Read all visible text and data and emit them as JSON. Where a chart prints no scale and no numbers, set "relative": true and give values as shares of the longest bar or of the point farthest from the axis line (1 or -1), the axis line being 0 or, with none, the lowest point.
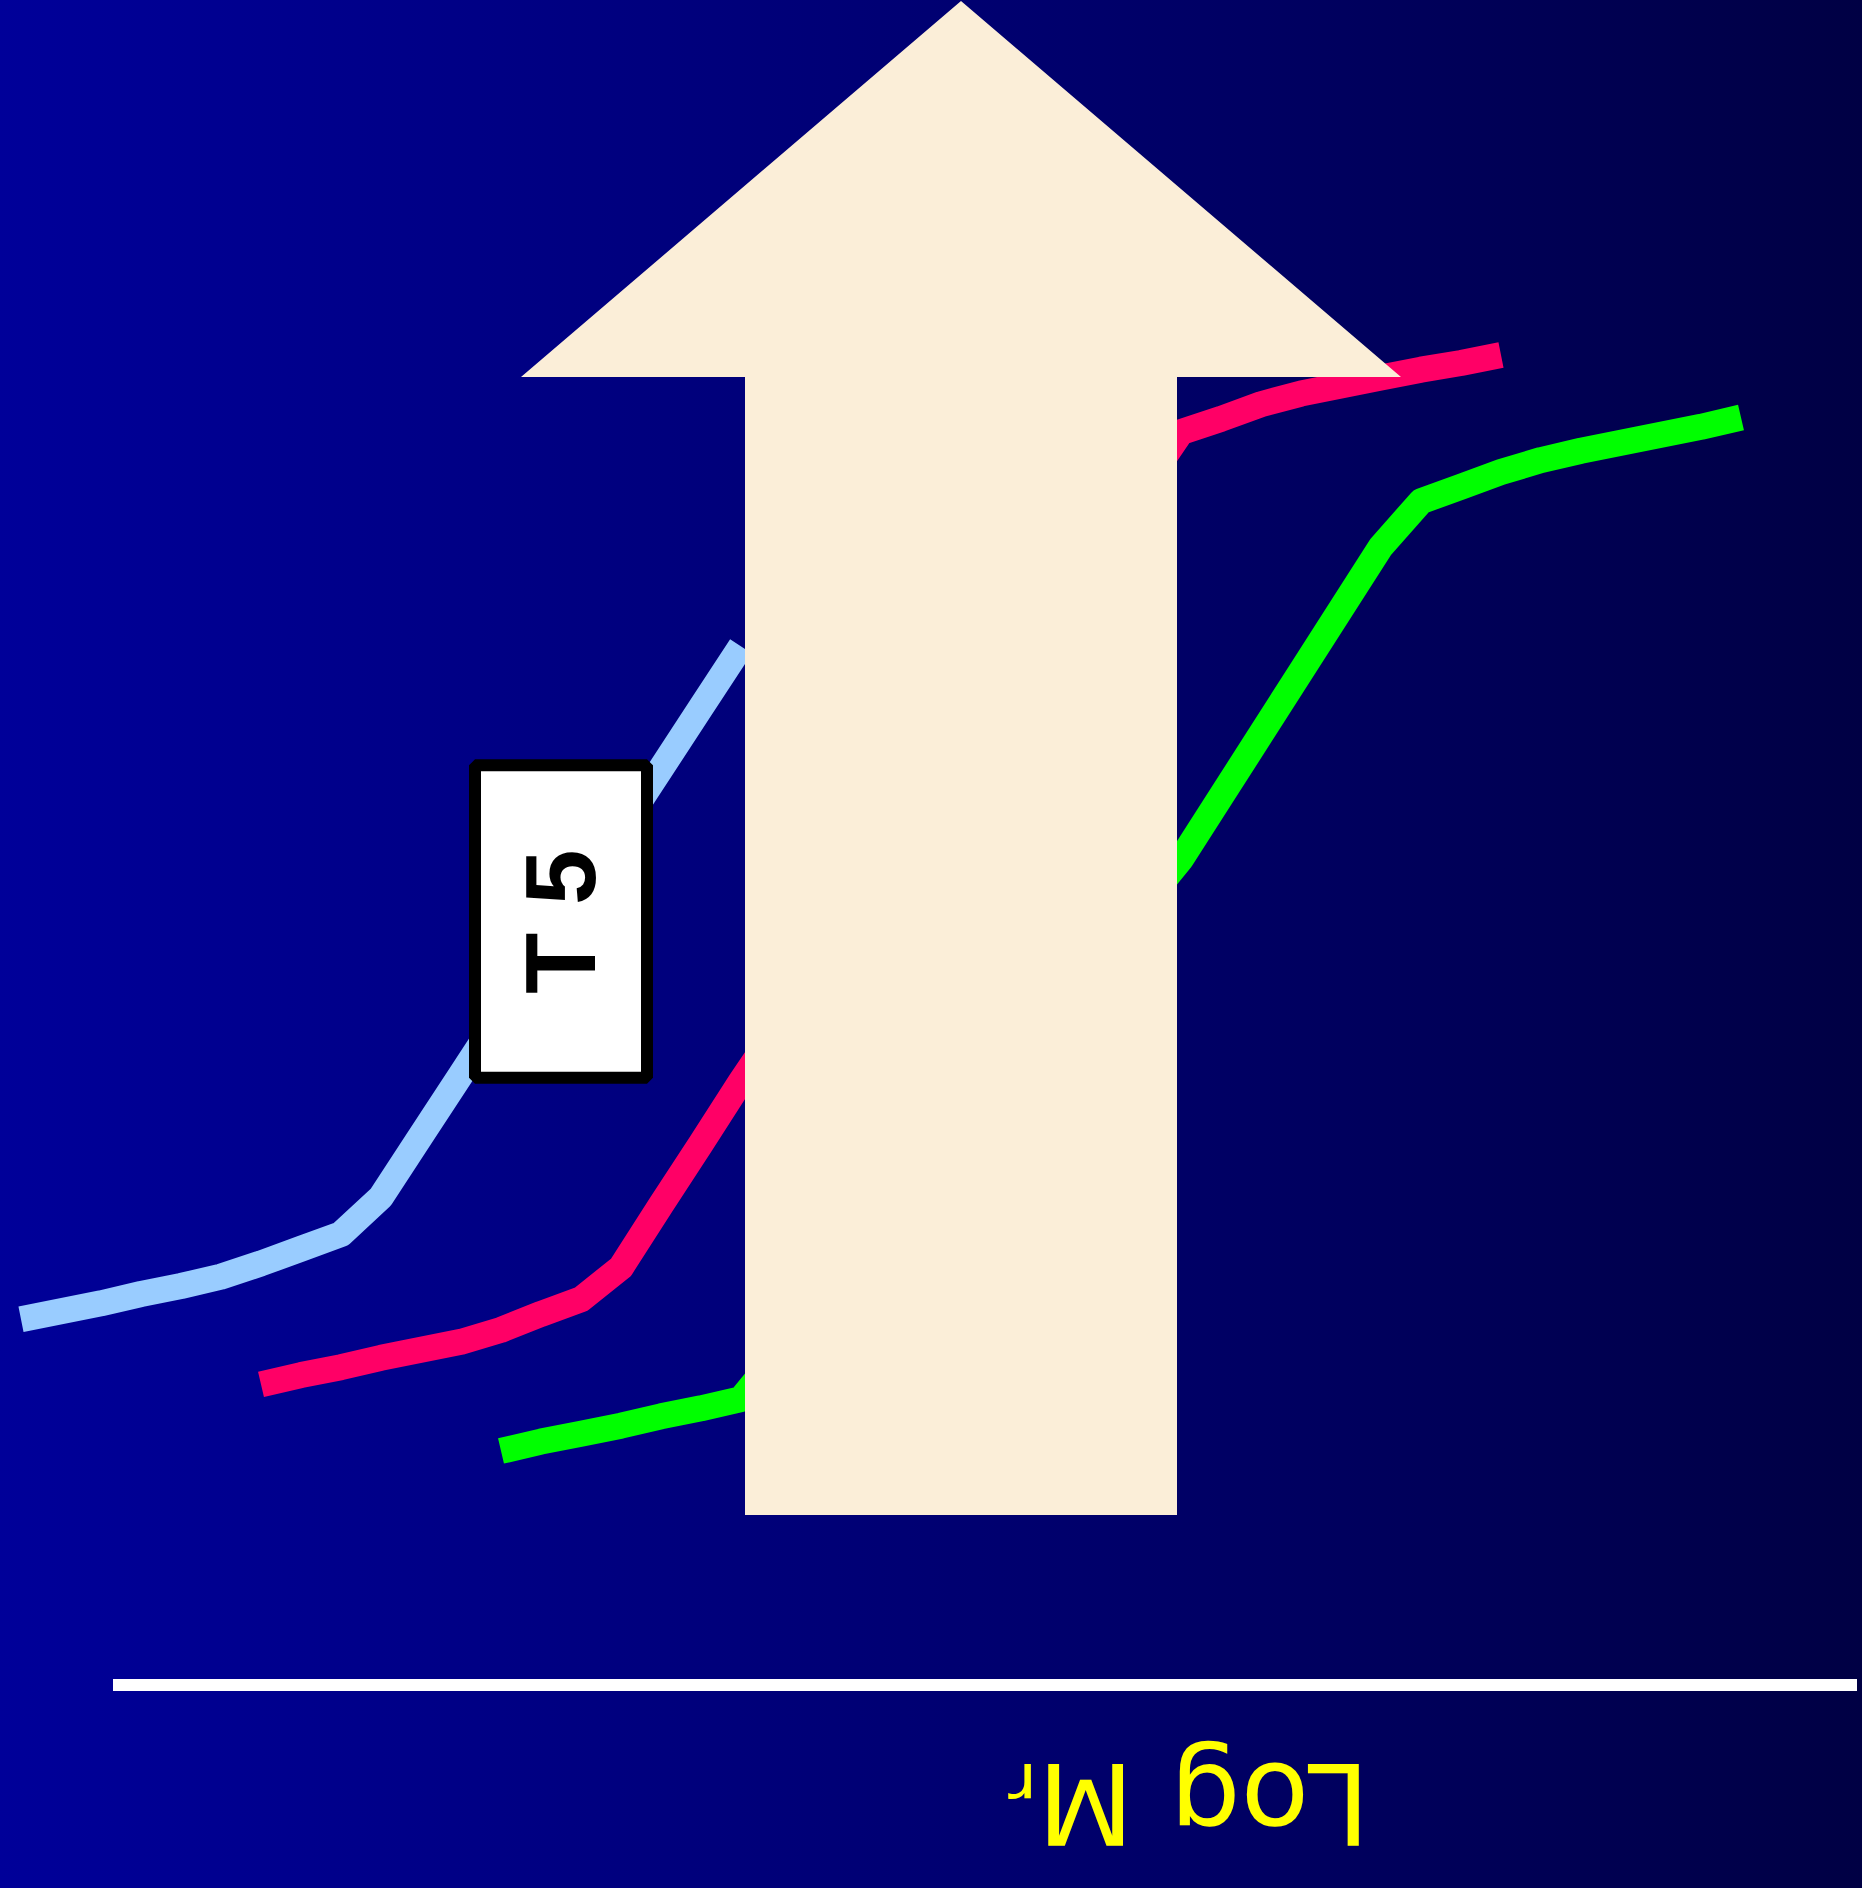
{
  "chart_data": {
    "type": "line",
    "relative": true,
    "xlabel": "Log Mᵣ",
    "line_style": "solid",
    "categories": [
      null,
      null,
      null,
      null,
      null,
      null,
      null,
      null,
      null,
      null,
      null,
      null,
      null,
      null,
      null,
      null,
      null,
      null,
      null,
      null,
      null,
      null,
      null,
      null,
      null,
      null,
      null,
      null,
      null,
      null,
      null,
      null,
      null,
      null,
      null,
      null,
      null,
      null,
      null,
      null,
      null,
      null,
      null,
      null
    ],
    "series": [
      {
        "name": "T 5",
        "color": "#99ccff",
        "values": [
          0.275,
          0.281,
          0.287,
          0.294,
          0.3,
          0.307,
          0.317,
          0.328,
          0.339,
          0.367,
          0.413,
          0.459,
          null,
          null,
          null,
          null,
          0.689,
          0.735,
          0.781,
          null,
          null,
          null,
          null,
          null,
          null,
          null,
          null,
          null,
          null,
          null,
          null,
          null,
          null,
          null,
          null,
          null,
          null,
          null,
          null,
          null,
          null,
          null,
          null,
          null
        ]
      },
      {
        "color": "#ff0066",
        "values": [
          null,
          null,
          null,
          null,
          null,
          null,
          0.226,
          0.233,
          0.239,
          0.246,
          0.252,
          0.258,
          0.267,
          0.279,
          0.29,
          0.314,
          0.361,
          0.407,
          0.454,
          null,
          null,
          null,
          null,
          null,
          null,
          null,
          null,
          null,
          null,
          0.942,
          0.952,
          0.963,
          0.971,
          0.977,
          0.983,
          0.989,
          0.994,
          1.0,
          null,
          null,
          null,
          null,
          null,
          null
        ]
      },
      {
        "color": "#00ff00",
        "values": [
          null,
          null,
          null,
          null,
          null,
          null,
          null,
          null,
          null,
          null,
          null,
          null,
          0.176,
          0.183,
          0.189,
          0.195,
          0.202,
          0.208,
          0.215,
          null,
          null,
          null,
          null,
          null,
          null,
          null,
          null,
          null,
          null,
          0.621,
          0.668,
          0.715,
          0.762,
          0.809,
          0.856,
          0.89,
          0.901,
          0.912,
          0.921,
          0.928,
          0.934,
          0.94,
          0.946,
          0.953
        ]
      }
    ]
  }
}
